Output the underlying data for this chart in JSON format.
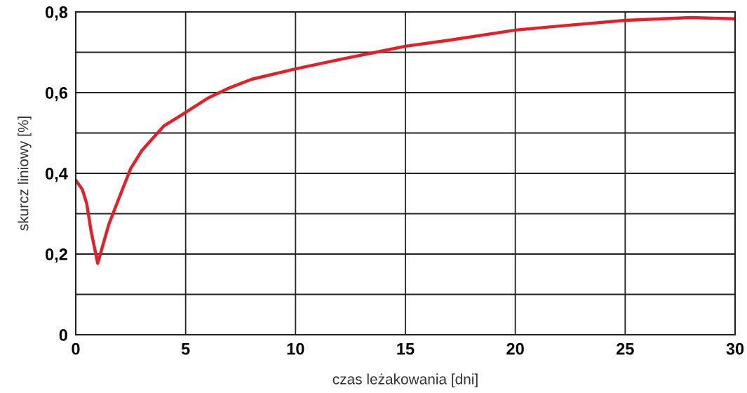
{
  "chart_data": {
    "type": "line",
    "xlabel": "czas leżakowania [dni]",
    "ylabel": "skurcz liniowy [%]",
    "x": [
      0,
      0.3,
      0.5,
      0.7,
      1,
      1.5,
      2,
      2.5,
      3,
      4,
      5,
      6,
      7,
      8,
      10,
      12,
      14,
      15,
      17,
      20,
      22,
      25,
      28,
      30
    ],
    "series": [
      {
        "color": "#e3202a",
        "values": [
          0.383,
          0.36,
          0.325,
          0.256,
          0.177,
          0.273,
          0.343,
          0.412,
          0.456,
          0.517,
          0.551,
          0.586,
          0.612,
          0.633,
          0.659,
          0.682,
          0.704,
          0.715,
          0.73,
          0.755,
          0.765,
          0.779,
          0.786,
          0.783
        ]
      }
    ],
    "xlim": [
      0,
      30
    ],
    "ylim": [
      0,
      0.8
    ],
    "xticks": [
      0,
      5,
      10,
      15,
      20,
      25,
      30
    ],
    "yticks": [
      {
        "value": 0,
        "label": "0"
      },
      {
        "value": 0.1,
        "label": null
      },
      {
        "value": 0.2,
        "label": "0,2"
      },
      {
        "value": 0.3,
        "label": null
      },
      {
        "value": 0.4,
        "label": "0,4"
      },
      {
        "value": 0.5,
        "label": null
      },
      {
        "value": 0.6,
        "label": "0,6"
      },
      {
        "value": 0.7,
        "label": null
      },
      {
        "value": 0.8,
        "label": "0,8"
      }
    ],
    "grid": true,
    "legend": false,
    "marker": "none",
    "line_style": "solid"
  }
}
